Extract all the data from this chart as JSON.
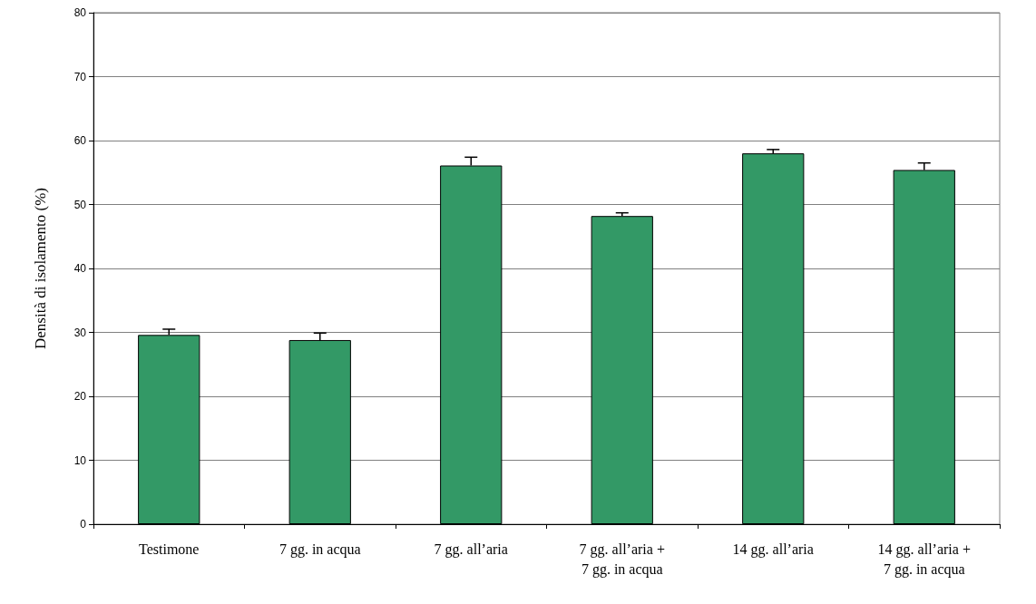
{
  "chart_data": {
    "type": "bar",
    "ylabel": "Densità di isolamento (%)",
    "categories": [
      "Testimone",
      "7 gg. in acqua",
      "7 gg. all’aria",
      "7 gg. all’aria + 7 gg. in acqua",
      "14 gg. all’aria",
      "14 gg. all’aria + 7 gg. in acqua"
    ],
    "values": [
      29.6,
      28.8,
      56.1,
      48.2,
      58.0,
      55.4
    ],
    "errors": [
      [
        29.6,
        30.5
      ],
      [
        28.8,
        29.9
      ],
      [
        56.1,
        57.4
      ],
      [
        48.2,
        48.7
      ],
      [
        58.0,
        58.6
      ],
      [
        55.4,
        56.5
      ]
    ],
    "color": "#339966",
    "ylim": [
      0,
      80
    ],
    "yticks": [
      0,
      10,
      20,
      30,
      40,
      50,
      60,
      70,
      80
    ],
    "grid": "y"
  }
}
